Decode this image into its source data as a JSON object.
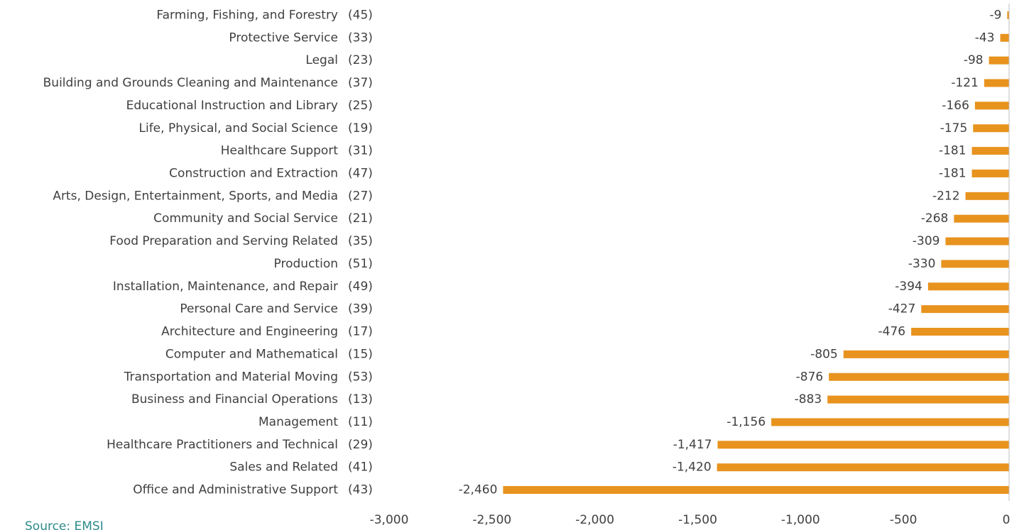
{
  "chart_data": {
    "type": "hbar",
    "categories": [
      "Farming, Fishing, and Forestry",
      "Protective Service",
      "Legal",
      "Building and Grounds Cleaning and Maintenance",
      "Educational Instruction and Library",
      "Life, Physical, and Social Science",
      "Healthcare Support",
      "Construction and Extraction",
      "Arts, Design, Entertainment, Sports, and Media",
      "Community and Social Service",
      "Food Preparation and Serving Related",
      "Production",
      "Installation, Maintenance, and Repair",
      "Personal Care and Service",
      "Architecture and Engineering",
      "Computer and Mathematical",
      "Transportation and Material Moving",
      "Business and Financial Operations",
      "Management",
      "Healthcare Practitioners and Technical",
      "Sales and Related",
      "Office and Administrative Support"
    ],
    "codes": [
      "(45)",
      "(33)",
      "(23)",
      "(37)",
      "(25)",
      "(19)",
      "(31)",
      "(47)",
      "(27)",
      "(21)",
      "(35)",
      "(51)",
      "(49)",
      "(39)",
      "(17)",
      "(15)",
      "(53)",
      "(13)",
      "(11)",
      "(29)",
      "(41)",
      "(43)"
    ],
    "values": [
      -9,
      -43,
      -98,
      -121,
      -166,
      -175,
      -181,
      -181,
      -212,
      -268,
      -309,
      -330,
      -394,
      -427,
      -476,
      -805,
      -876,
      -883,
      -1156,
      -1417,
      -1420,
      -2460
    ],
    "value_labels": [
      "-9",
      "-43",
      "-98",
      "-121",
      "-166",
      "-175",
      "-181",
      "-181",
      "-212",
      "-268",
      "-309",
      "-330",
      "-394",
      "-427",
      "-476",
      "-805",
      "-876",
      "-883",
      "-1,156",
      "-1,417",
      "-1,420",
      "-2,460"
    ],
    "color": "#e8931e",
    "xlim": [
      -3000,
      0
    ],
    "xticks": [
      {
        "value": -3000,
        "label": "-3,000"
      },
      {
        "value": -2500,
        "label": "-2,500"
      },
      {
        "value": -2000,
        "label": "-2,000"
      },
      {
        "value": -1500,
        "label": "-1,500"
      },
      {
        "value": -1000,
        "label": "-1,000"
      },
      -500,
      0
    ],
    "source": "Source: EMSI"
  }
}
